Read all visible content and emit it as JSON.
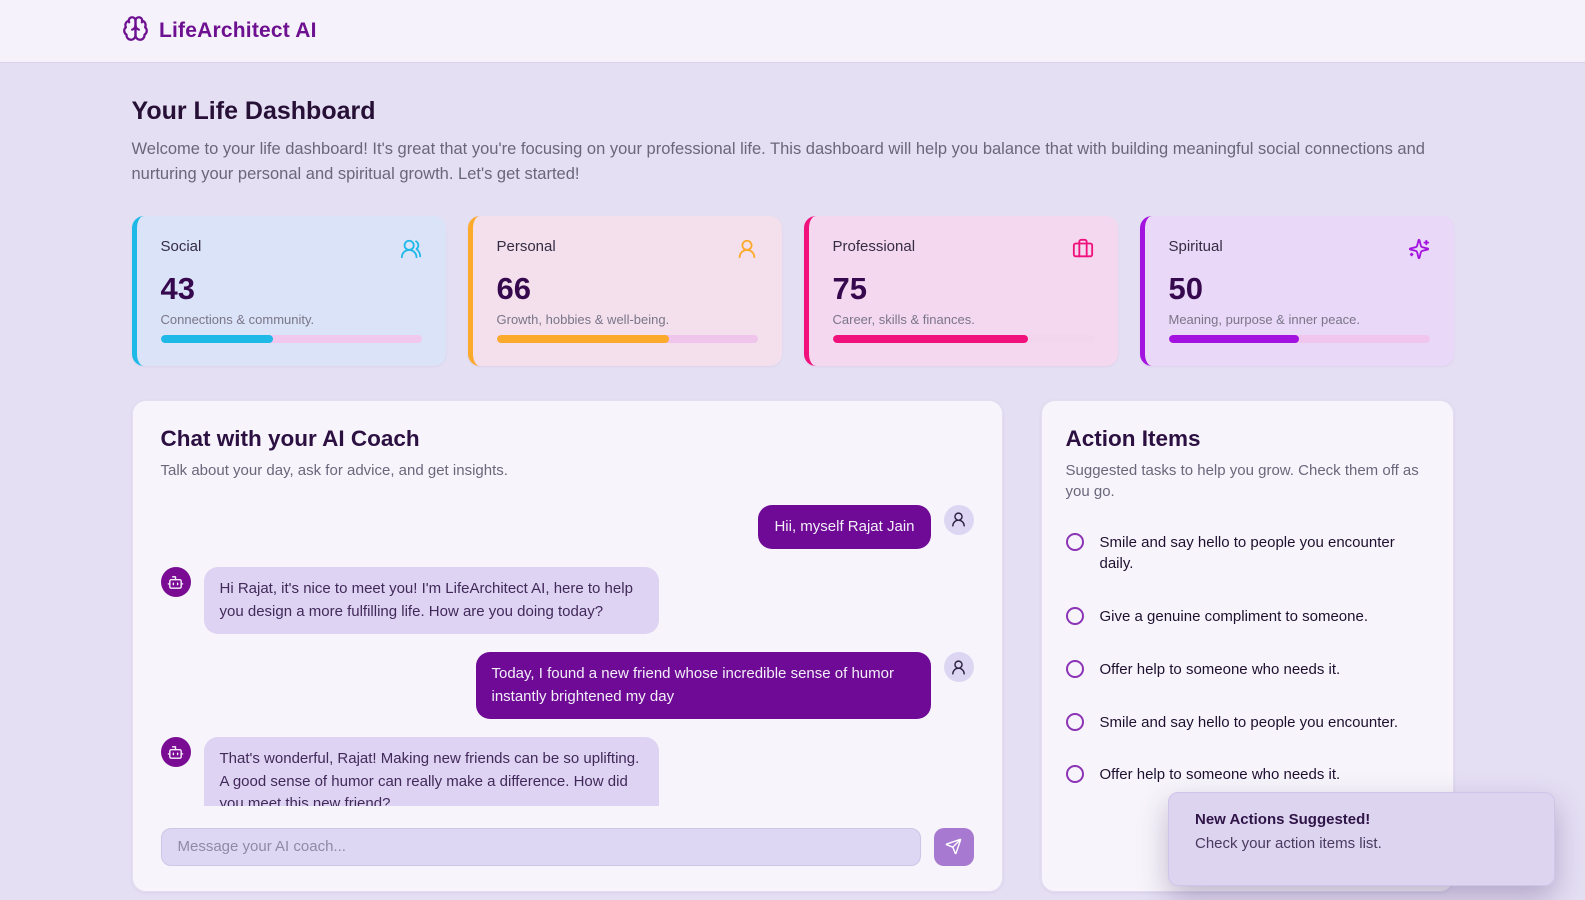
{
  "header": {
    "brand": "LifeArchitect AI",
    "brand_icon": "brain",
    "brand_color": "#6d1191"
  },
  "dashboard": {
    "title": "Your Life Dashboard",
    "welcome": "Welcome to your life dashboard! It's great that you're focusing on your professional life. This dashboard will help you balance that with building meaningful social connections and nurturing your personal and spiritual growth. Let's get started!"
  },
  "cards": [
    {
      "label": "Social",
      "value": 43,
      "description": "Connections & community.",
      "icon": "users",
      "accent": "#1fb9e8",
      "bg": "#dbe3f8",
      "track": "#f1c9ef"
    },
    {
      "label": "Personal",
      "value": 66,
      "description": "Growth, hobbies & well-being.",
      "icon": "user-round",
      "accent": "#fbaa2c",
      "bg": "#f3e0ec",
      "track": "#efc5ec"
    },
    {
      "label": "Professional",
      "value": 75,
      "description": "Career, skills & finances.",
      "icon": "briefcase",
      "accent": "#f0117c",
      "bg": "#f4d8ef",
      "track": "#f2d6ee"
    },
    {
      "label": "Spiritual",
      "value": 50,
      "description": "Meaning, purpose & inner peace.",
      "icon": "sparkles",
      "accent": "#a312df",
      "bg": "#e9d8f7",
      "track": "#f0c6ee"
    }
  ],
  "chat": {
    "title": "Chat with your AI Coach",
    "subtitle": "Talk about your day, ask for advice, and get insights.",
    "messages": [
      {
        "role": "user",
        "text": "Hii, myself Rajat Jain"
      },
      {
        "role": "ai",
        "text": "Hi Rajat, it's nice to meet you! I'm LifeArchitect AI, here to help you design a more fulfilling life. How are you doing today?"
      },
      {
        "role": "user",
        "text": "Today, I found a new friend whose incredible sense of humor instantly brightened my day"
      },
      {
        "role": "ai",
        "text": "That's wonderful, Rajat! Making new friends can be so uplifting. A good sense of humor can really make a difference. How did you meet this new friend?"
      }
    ],
    "input_placeholder": "Message your AI coach...",
    "bot_avatar_icon": "bot",
    "user_avatar_icon": "user-round",
    "send_icon": "send",
    "user_bubble_color": "#6e0a96",
    "ai_bubble_color": "#ded3f2"
  },
  "action_items": {
    "title": "Action Items",
    "subtitle": "Suggested tasks to help you grow. Check them off as you go.",
    "items": [
      {
        "text": "Smile and say hello to people you encounter daily.",
        "checked": false
      },
      {
        "text": "Give a genuine compliment to someone.",
        "checked": false
      },
      {
        "text": "Offer help to someone who needs it.",
        "checked": false
      },
      {
        "text": "Smile and say hello to people you encounter.",
        "checked": false
      },
      {
        "text": "Offer help to someone who needs it.",
        "checked": false
      }
    ]
  },
  "toast": {
    "title": "New Actions Suggested!",
    "body": "Check your action items list."
  }
}
